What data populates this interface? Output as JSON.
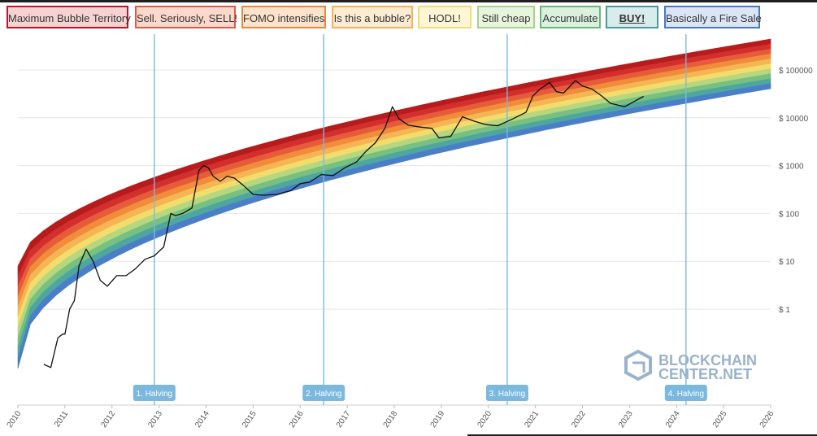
{
  "legend": [
    {
      "label": "Maximum Bubble Territory",
      "color": "#c8102e",
      "fill": "#f6d3d3"
    },
    {
      "label": "Sell. Seriously, SELL!",
      "color": "#e05a4a",
      "fill": "#fbd8cc"
    },
    {
      "label": "FOMO intensifies",
      "color": "#f0863c",
      "fill": "#fde3cc"
    },
    {
      "label": "Is this a bubble?",
      "color": "#f6b15a",
      "fill": "#fdebd2"
    },
    {
      "label": "HODL!",
      "color": "#f3dc6a",
      "fill": "#fdf7d7"
    },
    {
      "label": "Still cheap",
      "color": "#a9d28a",
      "fill": "#e9f4df"
    },
    {
      "label": "Accumulate",
      "color": "#69b87a",
      "fill": "#dcf0e0"
    },
    {
      "label": "BUY!",
      "color": "#4b9a9a",
      "fill": "#d9ecec"
    },
    {
      "label": "Basically a Fire Sale",
      "color": "#4a76c7",
      "fill": "#dbe5f6"
    }
  ],
  "band_colors": [
    "#b71c1c",
    "#d32f2f",
    "#e65c3a",
    "#f08c3a",
    "#f6b555",
    "#f2dc6b",
    "#b6d67f",
    "#77c07f",
    "#4ea6a0",
    "#4a7fc8"
  ],
  "watermark": {
    "line1": "BLOCKCHAIN",
    "line2": "CENTER.NET"
  },
  "chart_data": {
    "type": "line",
    "title": "",
    "xlabel": "",
    "ylabel": "",
    "y_scale": "log",
    "x_range": [
      2010.0,
      2026.0
    ],
    "x_ticks": [
      "2010",
      "2011",
      "2012",
      "2013",
      "2014",
      "2015",
      "2016",
      "2017",
      "2018",
      "2019",
      "2020",
      "2021",
      "2022",
      "2023",
      "2024",
      "2025",
      "2026"
    ],
    "y_ticks": [
      {
        "value": 1,
        "label": "$ 1"
      },
      {
        "value": 10,
        "label": "$ 10"
      },
      {
        "value": 100,
        "label": "$ 100"
      },
      {
        "value": 1000,
        "label": "$ 1000"
      },
      {
        "value": 10000,
        "label": "$ 10000"
      },
      {
        "value": 100000,
        "label": "$ 100000"
      }
    ],
    "halvings": [
      {
        "label": "1. Halving",
        "year": 2012.9
      },
      {
        "label": "2. Halving",
        "year": 2016.5
      },
      {
        "label": "3. Halving",
        "year": 2020.4
      },
      {
        "label": "4. Halving",
        "year": 2024.2
      }
    ],
    "price_series": {
      "name": "BTC price",
      "x": [
        2010.55,
        2010.7,
        2010.85,
        2010.95,
        2011.0,
        2011.1,
        2011.2,
        2011.3,
        2011.45,
        2011.6,
        2011.75,
        2011.9,
        2012.1,
        2012.3,
        2012.5,
        2012.7,
        2012.9,
        2013.1,
        2013.25,
        2013.35,
        2013.5,
        2013.7,
        2013.85,
        2013.95,
        2014.05,
        2014.15,
        2014.3,
        2014.45,
        2014.6,
        2014.8,
        2015.0,
        2015.2,
        2015.5,
        2015.8,
        2016.0,
        2016.2,
        2016.45,
        2016.7,
        2016.95,
        2017.2,
        2017.4,
        2017.6,
        2017.8,
        2017.96,
        2018.1,
        2018.3,
        2018.5,
        2018.8,
        2018.95,
        2019.2,
        2019.45,
        2019.7,
        2019.95,
        2020.2,
        2020.5,
        2020.8,
        2020.95,
        2021.1,
        2021.3,
        2021.45,
        2021.6,
        2021.85,
        2022.0,
        2022.2,
        2022.4,
        2022.6,
        2022.9,
        2023.1,
        2023.3
      ],
      "y": [
        0.07,
        0.06,
        0.25,
        0.3,
        0.3,
        1.0,
        1.5,
        8,
        18,
        10,
        4,
        3,
        5,
        5,
        7,
        11,
        13,
        20,
        100,
        90,
        100,
        130,
        800,
        1000,
        900,
        600,
        470,
        600,
        550,
        380,
        250,
        240,
        250,
        300,
        420,
        450,
        650,
        620,
        900,
        1200,
        2000,
        3000,
        6000,
        17000,
        9500,
        7000,
        6500,
        6000,
        3800,
        4100,
        10500,
        8500,
        7200,
        6800,
        9300,
        13000,
        29000,
        40000,
        55000,
        35000,
        33000,
        60000,
        46000,
        40000,
        29000,
        20000,
        17000,
        22000,
        28000
      ]
    }
  }
}
